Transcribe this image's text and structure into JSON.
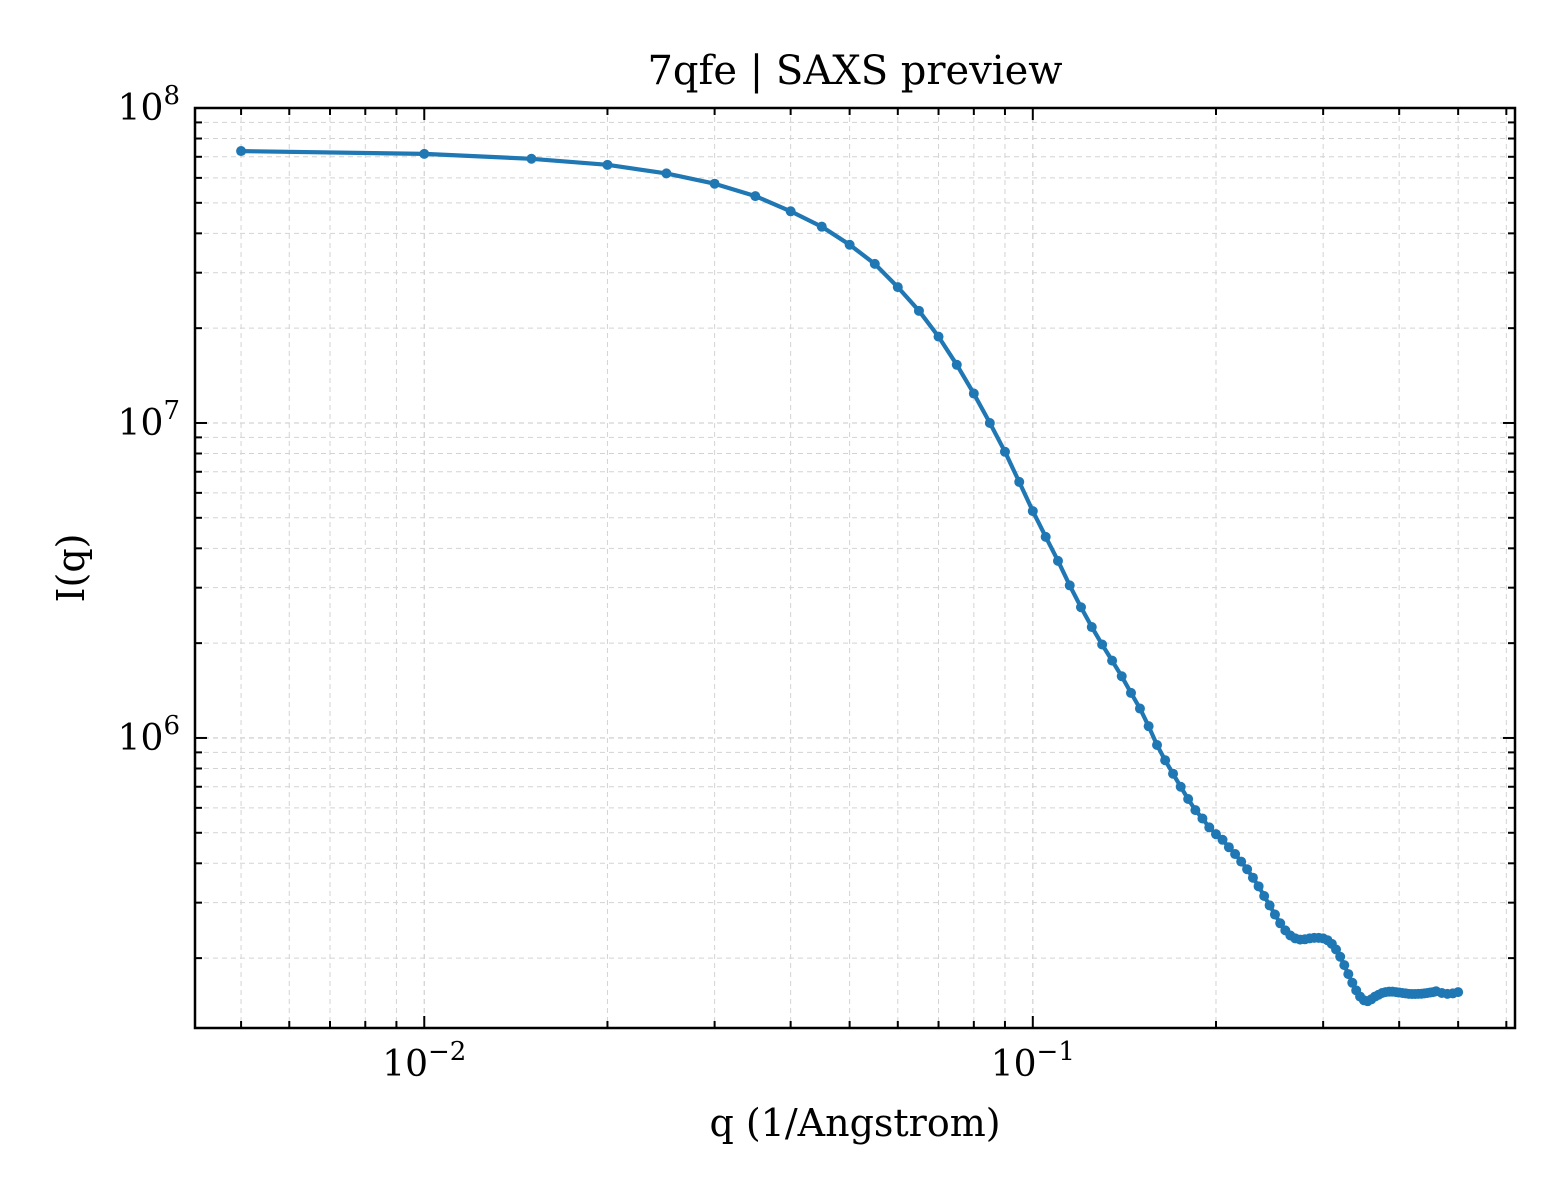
{
  "chart_data": {
    "type": "line",
    "title": "7qfe | SAXS preview",
    "xlabel": "q (1/Angstrom)",
    "ylabel": "I(q)",
    "x_scale": "log",
    "y_scale": "log",
    "xlim": [
      0.0042,
      0.62
    ],
    "ylim": [
      120000,
      100000000
    ],
    "grid": "both (major and minor, dashed)",
    "x_ticks": [
      {
        "value": 0.01,
        "base": "10",
        "exp": "−2"
      },
      {
        "value": 0.1,
        "base": "10",
        "exp": "−1"
      }
    ],
    "y_ticks": [
      {
        "value": 1000000,
        "base": "10",
        "exp": "6"
      },
      {
        "value": 10000000,
        "base": "10",
        "exp": "7"
      },
      {
        "value": 100000000,
        "base": "10",
        "exp": "8"
      }
    ],
    "colors": {
      "series": "#1f77b4",
      "grid": "#d3d3d3",
      "axes": "#000000"
    },
    "series": [
      {
        "points": [
          [
            0.005,
            73000000
          ],
          [
            0.01,
            71500000
          ],
          [
            0.015,
            69000000
          ],
          [
            0.02,
            66000000
          ],
          [
            0.025,
            62000000
          ],
          [
            0.03,
            57500000
          ],
          [
            0.035,
            52500000
          ],
          [
            0.04,
            47000000
          ],
          [
            0.045,
            42000000
          ],
          [
            0.05,
            36800000
          ],
          [
            0.055,
            32000000
          ],
          [
            0.06,
            27000000
          ],
          [
            0.065,
            22700000
          ],
          [
            0.07,
            18800000
          ],
          [
            0.075,
            15300000
          ],
          [
            0.08,
            12400000
          ],
          [
            0.085,
            10000000
          ],
          [
            0.09,
            8100000
          ],
          [
            0.095,
            6500000
          ],
          [
            0.1,
            5250000
          ],
          [
            0.105,
            4350000
          ],
          [
            0.11,
            3650000
          ],
          [
            0.115,
            3050000
          ],
          [
            0.12,
            2600000
          ],
          [
            0.125,
            2250000
          ],
          [
            0.13,
            1980000
          ],
          [
            0.135,
            1760000
          ],
          [
            0.14,
            1570000
          ],
          [
            0.145,
            1390000
          ],
          [
            0.15,
            1240000
          ],
          [
            0.155,
            1090000
          ],
          [
            0.16,
            950000
          ],
          [
            0.165,
            850000
          ],
          [
            0.17,
            770000
          ],
          [
            0.175,
            700000
          ],
          [
            0.18,
            640000
          ],
          [
            0.185,
            590000
          ],
          [
            0.19,
            555000
          ],
          [
            0.195,
            520000
          ],
          [
            0.2,
            495000
          ],
          [
            0.205,
            475000
          ],
          [
            0.21,
            450000
          ],
          [
            0.215,
            428000
          ],
          [
            0.22,
            405000
          ],
          [
            0.225,
            383000
          ],
          [
            0.23,
            360000
          ],
          [
            0.235,
            338000
          ],
          [
            0.24,
            315000
          ],
          [
            0.245,
            294000
          ],
          [
            0.25,
            275000
          ],
          [
            0.255,
            258000
          ],
          [
            0.26,
            245000
          ],
          [
            0.265,
            236000
          ],
          [
            0.27,
            231000
          ],
          [
            0.275,
            229000
          ],
          [
            0.28,
            229500
          ],
          [
            0.285,
            231000
          ],
          [
            0.29,
            232000
          ],
          [
            0.295,
            232000
          ],
          [
            0.3,
            231000
          ],
          [
            0.305,
            228000
          ],
          [
            0.31,
            222000
          ],
          [
            0.315,
            213000
          ],
          [
            0.32,
            202000
          ],
          [
            0.325,
            190000
          ],
          [
            0.33,
            178000
          ],
          [
            0.335,
            167000
          ],
          [
            0.34,
            158000
          ],
          [
            0.345,
            151000
          ],
          [
            0.35,
            147000
          ],
          [
            0.355,
            146000
          ],
          [
            0.36,
            148000
          ],
          [
            0.365,
            151000
          ],
          [
            0.37,
            153000
          ],
          [
            0.375,
            155000
          ],
          [
            0.38,
            156000
          ],
          [
            0.385,
            156500
          ],
          [
            0.39,
            156500
          ],
          [
            0.395,
            156000
          ],
          [
            0.4,
            155500
          ],
          [
            0.405,
            155000
          ],
          [
            0.41,
            154500
          ],
          [
            0.415,
            154000
          ],
          [
            0.42,
            153800
          ],
          [
            0.425,
            153800
          ],
          [
            0.43,
            154000
          ],
          [
            0.435,
            154200
          ],
          [
            0.44,
            154500
          ],
          [
            0.445,
            155000
          ],
          [
            0.45,
            155500
          ],
          [
            0.455,
            156000
          ],
          [
            0.46,
            157000
          ],
          [
            0.47,
            155000
          ],
          [
            0.48,
            154000
          ],
          [
            0.49,
            154500
          ],
          [
            0.5,
            156000
          ]
        ]
      }
    ]
  }
}
